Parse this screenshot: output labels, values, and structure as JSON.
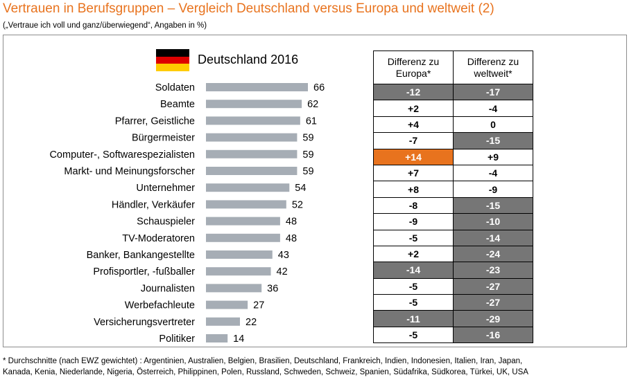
{
  "title": "Vertrauen in Berufsgruppen – Vergleich Deutschland versus Europa und weltweit (2)",
  "subtitle": "(„Vertraue ich voll und ganz/überwiegend“, Angaben in %)",
  "country_label": "Deutschland 2016",
  "flag_colors": [
    "#000000",
    "#dd0000",
    "#ffcc00"
  ],
  "colors": {
    "bar": "#a6adb5",
    "highlight": "#e8731e",
    "dark_cell": "#767676"
  },
  "chart_data": {
    "type": "bar",
    "orientation": "horizontal",
    "title": "Deutschland 2016",
    "categories": [
      "Soldaten",
      "Beamte",
      "Pfarrer, Geistliche",
      "Bürgermeister",
      "Computer-, Softwarespezialisten",
      "Markt- und Meinungsforscher",
      "Unternehmer",
      "Händler, Verkäufer",
      "Schauspieler",
      "TV-Moderatoren",
      "Banker, Bankangestellte",
      "Profisportler, -fußballer",
      "Journalisten",
      "Werbefachleute",
      "Versicherungsvertreter",
      "Politiker"
    ],
    "values": [
      66,
      62,
      61,
      59,
      59,
      59,
      54,
      52,
      48,
      48,
      43,
      42,
      36,
      27,
      22,
      14
    ],
    "xlim": [
      0,
      100
    ]
  },
  "table": {
    "headers": [
      "Differenz zu Europa*",
      "Differenz zu weltweit*"
    ],
    "rows": [
      [
        {
          "v": "-12",
          "s": "g"
        },
        {
          "v": "-17",
          "s": "g"
        }
      ],
      [
        {
          "v": "+2",
          "s": "w"
        },
        {
          "v": "-4",
          "s": "w"
        }
      ],
      [
        {
          "v": "+4",
          "s": "w"
        },
        {
          "v": "0",
          "s": "w"
        }
      ],
      [
        {
          "v": "-7",
          "s": "w"
        },
        {
          "v": "-15",
          "s": "g"
        }
      ],
      [
        {
          "v": "+14",
          "s": "o"
        },
        {
          "v": "+9",
          "s": "w"
        }
      ],
      [
        {
          "v": "+7",
          "s": "w"
        },
        {
          "v": "-4",
          "s": "w"
        }
      ],
      [
        {
          "v": "+8",
          "s": "w"
        },
        {
          "v": "-9",
          "s": "w"
        }
      ],
      [
        {
          "v": "-8",
          "s": "w"
        },
        {
          "v": "-15",
          "s": "g"
        }
      ],
      [
        {
          "v": "-9",
          "s": "w"
        },
        {
          "v": "-10",
          "s": "g"
        }
      ],
      [
        {
          "v": "-5",
          "s": "w"
        },
        {
          "v": "-14",
          "s": "g"
        }
      ],
      [
        {
          "v": "+2",
          "s": "w"
        },
        {
          "v": "-24",
          "s": "g"
        }
      ],
      [
        {
          "v": "-14",
          "s": "g"
        },
        {
          "v": "-23",
          "s": "g"
        }
      ],
      [
        {
          "v": "-5",
          "s": "w"
        },
        {
          "v": "-27",
          "s": "g"
        }
      ],
      [
        {
          "v": "-5",
          "s": "w"
        },
        {
          "v": "-27",
          "s": "g"
        }
      ],
      [
        {
          "v": "-11",
          "s": "g"
        },
        {
          "v": "-29",
          "s": "g"
        }
      ],
      [
        {
          "v": "-5",
          "s": "w"
        },
        {
          "v": "-16",
          "s": "g"
        }
      ]
    ]
  },
  "footnote_line1": "* Durchschnitte (nach EWZ gewichtet) : Argentinien, Australien, Belgien, Brasilien, Deutschland, Frankreich, Indien, Indonesien, Italien, Iran, Japan,",
  "footnote_line2": "Kanada, Kenia, Niederlande, Nigeria, Österreich, Philippinen, Polen, Russland, Schweden, Schweiz, Spanien, Südafrika, Südkorea, Türkei, UK, USA"
}
